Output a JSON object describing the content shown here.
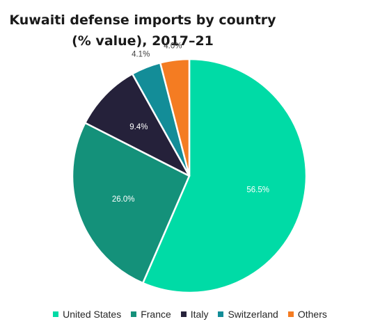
{
  "chart_data": {
    "type": "pie",
    "title": "Kuwaiti defense imports by country",
    "subtitle": "(% value), 2017–21",
    "categories": [
      "United States",
      "France",
      "Italy",
      "Switzerland",
      "Others"
    ],
    "values": [
      56.5,
      26.0,
      9.4,
      4.1,
      4.0
    ],
    "data_labels": [
      "56.5%",
      "26.0%",
      "9.4%",
      "4.1%",
      "4.0%"
    ],
    "colors": [
      "#00dba6",
      "#14917a",
      "#25213a",
      "#138d98",
      "#f47c22"
    ],
    "legend_position": "bottom",
    "start_angle_deg": 0,
    "direction": "clockwise"
  }
}
